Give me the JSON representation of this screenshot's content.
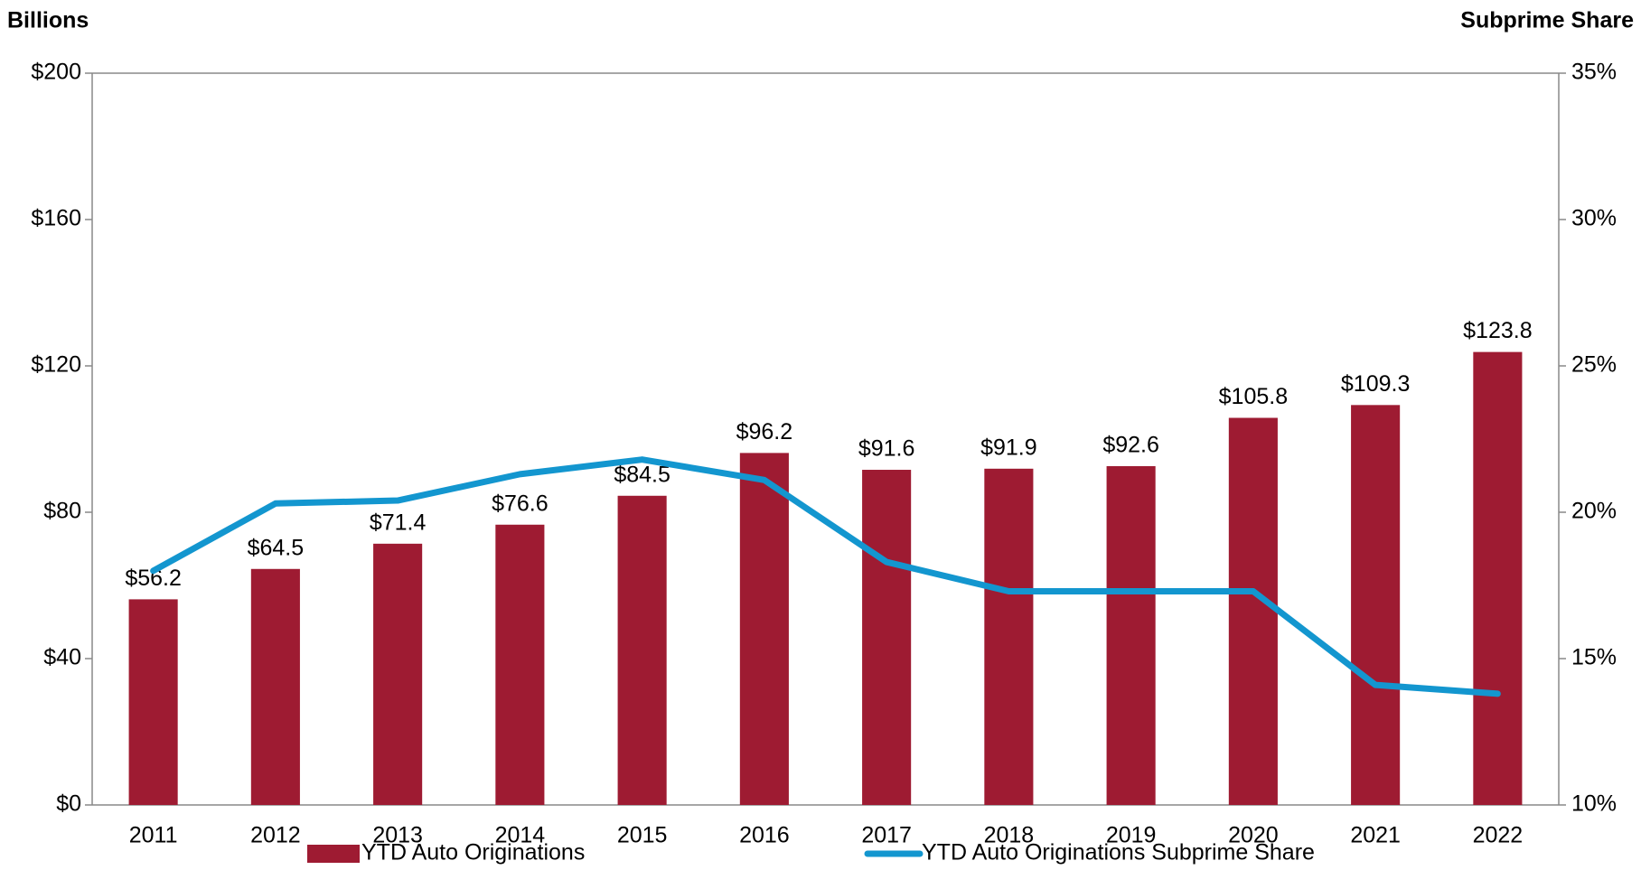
{
  "chart_data": {
    "type": "bar_line",
    "y_axis_title": "Billions",
    "y2_axis_title": "Subprime Share",
    "categories": [
      "2011",
      "2012",
      "2013",
      "2014",
      "2015",
      "2016",
      "2017",
      "2018",
      "2019",
      "2020",
      "2021",
      "2022"
    ],
    "series": [
      {
        "name": "YTD Auto Originations",
        "type": "bar",
        "color": "#9e1b32",
        "values": [
          56.2,
          64.5,
          71.4,
          76.6,
          84.5,
          96.2,
          91.6,
          91.9,
          92.6,
          105.8,
          109.3,
          123.8
        ],
        "value_labels": [
          "$56.2",
          "$64.5",
          "$71.4",
          "$76.6",
          "$84.5",
          "$96.2",
          "$91.6",
          "$91.9",
          "$92.6",
          "$105.8",
          "$109.3",
          "$123.8"
        ]
      },
      {
        "name": "YTD Auto Originations Subprime Share",
        "type": "line",
        "color": "#1396cf",
        "axis": "y2",
        "values": [
          18.0,
          20.3,
          20.4,
          21.3,
          21.8,
          21.1,
          18.3,
          17.3,
          17.3,
          17.3,
          14.1,
          13.8
        ]
      }
    ],
    "ylim": [
      0,
      200
    ],
    "yticks": [
      {
        "value": 0,
        "label": "$0"
      },
      {
        "value": 40,
        "label": "$40"
      },
      {
        "value": 80,
        "label": "$80"
      },
      {
        "value": 120,
        "label": "$120"
      },
      {
        "value": 160,
        "label": "$160"
      },
      {
        "value": 200,
        "label": "$200"
      }
    ],
    "y2lim": [
      10,
      35
    ],
    "y2ticks": [
      {
        "value": 10,
        "label": "10%"
      },
      {
        "value": 15,
        "label": "15%"
      },
      {
        "value": 20,
        "label": "20%"
      },
      {
        "value": 25,
        "label": "25%"
      },
      {
        "value": 30,
        "label": "30%"
      },
      {
        "value": 35,
        "label": "35%"
      }
    ],
    "grid": false,
    "legend": "bottom"
  }
}
